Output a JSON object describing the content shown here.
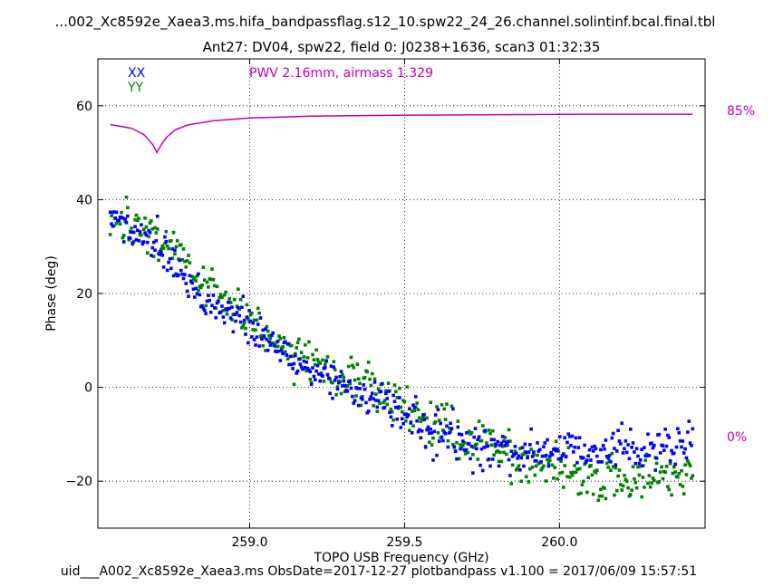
{
  "chart_data": {
    "type": "scatter",
    "title": "...002_Xc8592e_Xaea3.ms.hifa_bandpassflag.s12_10.spw22_24_26.channel.solintinf.bcal.final.tbl",
    "subtitle": "Ant27: DV04,  spw22,  field 0: J0238+1636,  scan3  01:32:35",
    "xlabel": "TOPO USB Frequency (GHz)",
    "ylabel": "Phase (deg)",
    "xlim": [
      258.51,
      260.47
    ],
    "ylim": [
      -30,
      70
    ],
    "x_ticks": [
      259.0,
      259.5,
      260.0
    ],
    "x_tick_labels": [
      "259.0",
      "259.5",
      "260.0"
    ],
    "y_ticks": [
      -20,
      0,
      20,
      40,
      60
    ],
    "y_tick_labels": [
      "−20",
      "0",
      "20",
      "40",
      "60"
    ],
    "grid": true,
    "legend_position": "top-left",
    "annotation": "PWV 2.16mm, airmass 1.329",
    "right_axis_labels": {
      "top": "85%",
      "bottom": "0%"
    },
    "footer": "uid___A002_Xc8592e_Xaea3.ms  ObsDate=2017-12-27   plotbandpass v1.100 = 2017/06/09 15:57:51",
    "series": [
      {
        "name": "XX",
        "color": "#0000ff",
        "x_range": [
          258.55,
          260.43
        ],
        "n_points": 470,
        "trend": {
          "x": [
            258.55,
            258.7,
            258.85,
            259.0,
            259.15,
            259.3,
            259.45,
            259.6,
            259.75,
            259.9,
            260.05,
            260.2,
            260.43
          ],
          "y": [
            36,
            31,
            19,
            13,
            5,
            1,
            -4,
            -10,
            -13,
            -14,
            -13,
            -13,
            -13
          ]
        },
        "scatter_sd": 2.2
      },
      {
        "name": "YY",
        "color": "#007f00",
        "x_range": [
          258.55,
          260.43
        ],
        "n_points": 470,
        "trend": {
          "x": [
            258.55,
            258.7,
            258.85,
            259.0,
            259.15,
            259.3,
            259.45,
            259.6,
            259.75,
            259.9,
            260.05,
            260.2,
            260.43
          ],
          "y": [
            36,
            33,
            22,
            15,
            7,
            2,
            -2,
            -8,
            -12,
            -16,
            -19,
            -20,
            -18
          ]
        },
        "scatter_sd": 2.4
      }
    ],
    "atmosphere": {
      "color": "#bf00bf",
      "x": [
        258.55,
        258.62,
        258.66,
        258.69,
        258.7,
        258.71,
        258.73,
        258.76,
        258.8,
        258.88,
        259.0,
        259.2,
        259.5,
        259.8,
        260.1,
        260.43
      ],
      "y": [
        56.0,
        55.2,
        53.8,
        51.5,
        50.0,
        51.2,
        53.2,
        54.9,
        55.9,
        56.8,
        57.4,
        57.8,
        58.0,
        58.1,
        58.2,
        58.2
      ]
    }
  }
}
